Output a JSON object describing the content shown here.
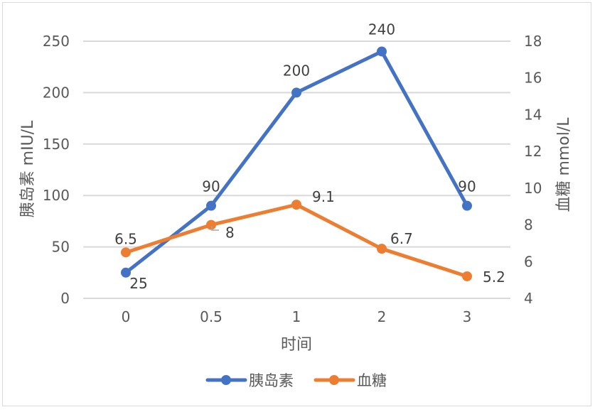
{
  "chart_data": {
    "type": "line",
    "title": "",
    "xlabel": "时间",
    "ylabel": "胰岛素 mIU/L",
    "y2label": "血糖 mmol/L",
    "categories": [
      "0",
      "0.5",
      "1",
      "2",
      "3"
    ],
    "series": [
      {
        "name": "胰岛素",
        "axis": "left",
        "color": "#4472C4",
        "values": [
          25,
          90,
          200,
          240,
          90
        ]
      },
      {
        "name": "血糖",
        "axis": "right",
        "color": "#ED7D31",
        "values": [
          6.5,
          8,
          9.1,
          6.7,
          5.2
        ]
      }
    ],
    "ylim": [
      0,
      250
    ],
    "y2lim": [
      4,
      18
    ],
    "yticks": [
      "0",
      "50",
      "100",
      "150",
      "200",
      "250"
    ],
    "y2ticks": [
      "4",
      "6",
      "8",
      "10",
      "12",
      "14",
      "16",
      "18"
    ],
    "grid": true,
    "legend_position": "bottom"
  },
  "legend": {
    "items": [
      "胰岛素",
      "血糖"
    ]
  }
}
